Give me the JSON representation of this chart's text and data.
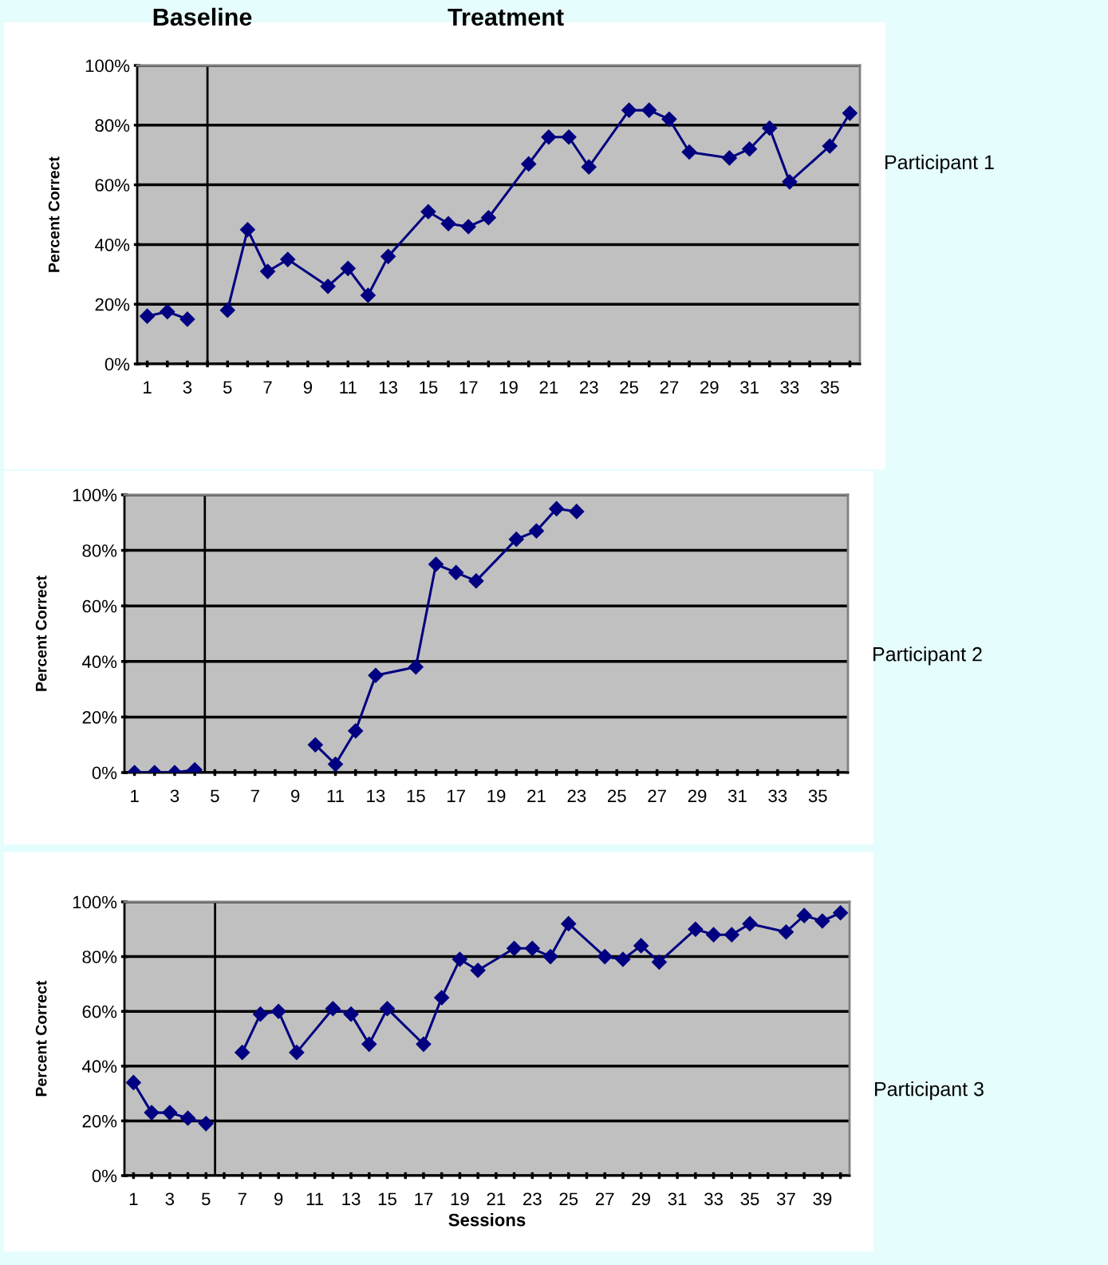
{
  "chart_data": [
    {
      "type": "line",
      "ylabel": "Percent Correct",
      "marker": "diamond",
      "grid": "y",
      "annotations": [
        "Baseline",
        "Treatment",
        "Participant 1"
      ],
      "xlim": [
        0.5,
        36.5
      ],
      "xticks": [
        1,
        {
          "value": 2,
          "label": null
        },
        3,
        {
          "value": 4,
          "label": null
        },
        5,
        {
          "value": 6,
          "label": null
        },
        7,
        {
          "value": 8,
          "label": null
        },
        9,
        {
          "value": 10,
          "label": null
        },
        11,
        {
          "value": 12,
          "label": null
        },
        13,
        {
          "value": 14,
          "label": null
        },
        15,
        {
          "value": 16,
          "label": null
        },
        17,
        {
          "value": 18,
          "label": null
        },
        19,
        {
          "value": 20,
          "label": null
        },
        21,
        {
          "value": 22,
          "label": null
        },
        23,
        {
          "value": 24,
          "label": null
        },
        25,
        {
          "value": 26,
          "label": null
        },
        27,
        {
          "value": 28,
          "label": null
        },
        29,
        {
          "value": 30,
          "label": null
        },
        31,
        {
          "value": 32,
          "label": null
        },
        33,
        {
          "value": 34,
          "label": null
        },
        35,
        {
          "value": 36,
          "label": null
        }
      ],
      "ylim": [
        0,
        100
      ],
      "yticks": [
        {
          "value": 0,
          "label": "0%"
        },
        {
          "value": 20,
          "label": "20%"
        },
        {
          "value": 40,
          "label": "40%"
        },
        {
          "value": 60,
          "label": "60%"
        },
        {
          "value": 80,
          "label": "80%"
        },
        {
          "value": 100,
          "label": "100%"
        }
      ],
      "ref_lines": [
        {
          "axis": "x",
          "value": 4,
          "color": "#000000"
        }
      ],
      "series": [
        {
          "color": "#000080",
          "x": [
            1,
            2,
            3
          ],
          "values": [
            16,
            17.5,
            15
          ]
        },
        {
          "color": "#000080",
          "x": [
            5,
            6,
            7,
            8,
            10,
            11,
            12,
            13,
            15,
            16,
            17,
            18,
            20,
            21,
            22,
            23,
            25,
            26,
            27,
            28,
            30,
            31,
            32,
            33,
            35,
            36
          ],
          "values": [
            18,
            45,
            31,
            35,
            26,
            32,
            23,
            36,
            51,
            47,
            46,
            49,
            67,
            76,
            76,
            66,
            85,
            85,
            82,
            71,
            69,
            72,
            79,
            61,
            73,
            84
          ]
        }
      ]
    },
    {
      "type": "line",
      "ylabel": "Percent Correct",
      "marker": "diamond",
      "grid": "y",
      "annotations": [
        "Participant 2"
      ],
      "xlim": [
        0.5,
        36.5
      ],
      "xticks": [
        1,
        {
          "value": 2,
          "label": null
        },
        3,
        {
          "value": 4,
          "label": null
        },
        5,
        {
          "value": 6,
          "label": null
        },
        7,
        {
          "value": 8,
          "label": null
        },
        9,
        {
          "value": 10,
          "label": null
        },
        11,
        {
          "value": 12,
          "label": null
        },
        13,
        {
          "value": 14,
          "label": null
        },
        15,
        {
          "value": 16,
          "label": null
        },
        17,
        {
          "value": 18,
          "label": null
        },
        19,
        {
          "value": 20,
          "label": null
        },
        21,
        {
          "value": 22,
          "label": null
        },
        23,
        {
          "value": 24,
          "label": null
        },
        25,
        {
          "value": 26,
          "label": null
        },
        27,
        {
          "value": 28,
          "label": null
        },
        29,
        {
          "value": 30,
          "label": null
        },
        31,
        {
          "value": 32,
          "label": null
        },
        33,
        {
          "value": 34,
          "label": null
        },
        35,
        {
          "value": 36,
          "label": null
        }
      ],
      "ylim": [
        0,
        100
      ],
      "yticks": [
        {
          "value": 0,
          "label": "0%"
        },
        {
          "value": 20,
          "label": "20%"
        },
        {
          "value": 40,
          "label": "40%"
        },
        {
          "value": 60,
          "label": "60%"
        },
        {
          "value": 80,
          "label": "80%"
        },
        {
          "value": 100,
          "label": "100%"
        }
      ],
      "ref_lines": [
        {
          "axis": "x",
          "value": 4.5,
          "color": "#000000"
        }
      ],
      "series": [
        {
          "color": "#000080",
          "x": [
            1,
            2,
            3,
            4
          ],
          "values": [
            0,
            0,
            0,
            1
          ]
        },
        {
          "color": "#000080",
          "x": [
            10,
            11,
            12,
            13,
            15,
            16,
            17,
            18,
            20,
            21,
            22,
            23
          ],
          "values": [
            10,
            3,
            15,
            35,
            38,
            75,
            72,
            69,
            84,
            87,
            95,
            94
          ]
        }
      ]
    },
    {
      "type": "line",
      "ylabel": "Percent Correct",
      "xlabel": "Sessions",
      "marker": "diamond",
      "grid": "y",
      "annotations": [
        "Participant 3"
      ],
      "xlim": [
        0.5,
        40.5
      ],
      "xticks": [
        1,
        {
          "value": 2,
          "label": null
        },
        3,
        {
          "value": 4,
          "label": null
        },
        5,
        {
          "value": 6,
          "label": null
        },
        7,
        {
          "value": 8,
          "label": null
        },
        9,
        {
          "value": 10,
          "label": null
        },
        11,
        {
          "value": 12,
          "label": null
        },
        13,
        {
          "value": 14,
          "label": null
        },
        15,
        {
          "value": 16,
          "label": null
        },
        17,
        {
          "value": 18,
          "label": null
        },
        19,
        {
          "value": 20,
          "label": null
        },
        21,
        {
          "value": 22,
          "label": null
        },
        23,
        {
          "value": 24,
          "label": null
        },
        25,
        {
          "value": 26,
          "label": null
        },
        27,
        {
          "value": 28,
          "label": null
        },
        29,
        {
          "value": 30,
          "label": null
        },
        31,
        {
          "value": 32,
          "label": null
        },
        33,
        {
          "value": 34,
          "label": null
        },
        35,
        {
          "value": 36,
          "label": null
        },
        37,
        {
          "value": 38,
          "label": null
        },
        39,
        {
          "value": 40,
          "label": null
        }
      ],
      "ylim": [
        0,
        100
      ],
      "yticks": [
        {
          "value": 0,
          "label": "0%"
        },
        {
          "value": 20,
          "label": "20%"
        },
        {
          "value": 40,
          "label": "40%"
        },
        {
          "value": 60,
          "label": "60%"
        },
        {
          "value": 80,
          "label": "80%"
        },
        {
          "value": 100,
          "label": "100%"
        }
      ],
      "ref_lines": [
        {
          "axis": "x",
          "value": 5.5,
          "color": "#000000"
        }
      ],
      "series": [
        {
          "color": "#000080",
          "x": [
            1,
            2,
            3,
            4,
            5
          ],
          "values": [
            34,
            23,
            23,
            21,
            19
          ]
        },
        {
          "color": "#000080",
          "x": [
            7,
            8,
            9,
            10,
            12,
            13,
            14,
            15,
            17,
            18,
            19,
            20,
            22,
            23,
            24,
            25,
            27,
            28,
            29,
            30,
            32,
            33,
            34,
            35,
            37,
            38,
            39,
            40
          ],
          "values": [
            45,
            59,
            60,
            45,
            61,
            59,
            48,
            61,
            48,
            65,
            79,
            75,
            83,
            83,
            80,
            92,
            80,
            79,
            84,
            78,
            90,
            88,
            88,
            92,
            89,
            95,
            93,
            96
          ]
        }
      ]
    }
  ]
}
